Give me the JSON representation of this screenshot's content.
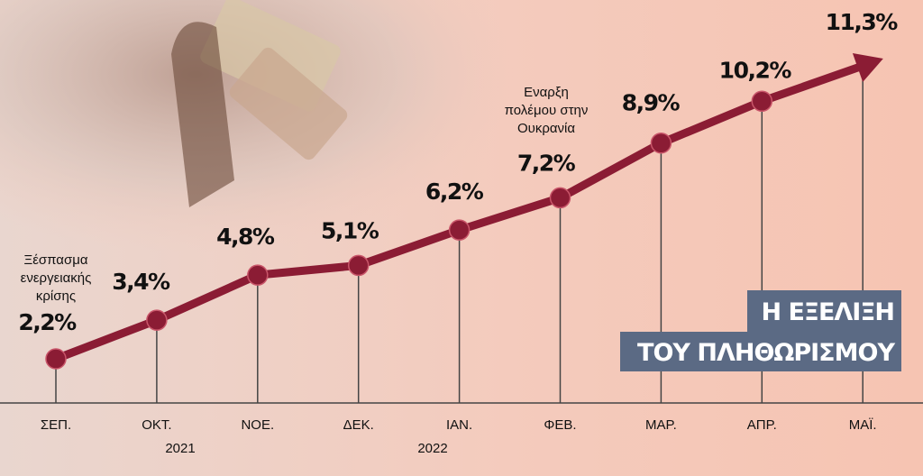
{
  "chart_data": {
    "type": "line",
    "title": [
      "Η ΕΞΕΛΙΞΗ",
      "ΤΟΥ ΠΛΗΘΩΡΙΣΜΟΥ"
    ],
    "categories": [
      "ΣΕΠ.",
      "ΟΚΤ.",
      "ΝΟΕ.",
      "ΔΕΚ.",
      "ΙΑΝ.",
      "ΦΕΒ.",
      "ΜΑΡ.",
      "ΑΠΡ.",
      "ΜΑΪ."
    ],
    "years": [
      "2021",
      "2022"
    ],
    "values": [
      2.2,
      3.4,
      4.8,
      5.1,
      6.2,
      7.2,
      8.9,
      10.2,
      11.3
    ],
    "value_labels": [
      "2,2%",
      "3,4%",
      "4,8%",
      "5,1%",
      "6,2%",
      "7,2%",
      "8,9%",
      "10,2%",
      "11,3%"
    ],
    "annotations": [
      [
        "Ξέσπασμα",
        "ενεργειακής",
        "κρίσης"
      ],
      [
        "Εναρξη",
        "πολέμου στην",
        "Ουκρανία"
      ]
    ],
    "color": "#8b1c34"
  }
}
